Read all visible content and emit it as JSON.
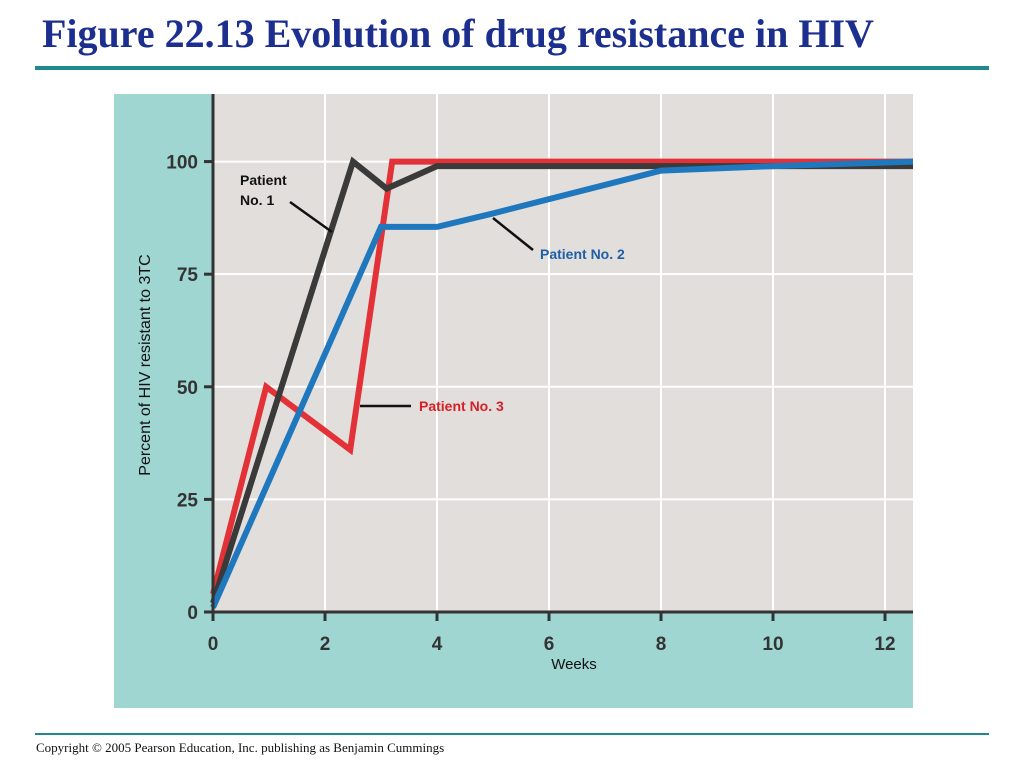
{
  "slide": {
    "title": "Figure 22.13 Evolution of drug resistance in HIV",
    "copyright": "Copyright © 2005 Pearson Education, Inc. publishing as Benjamin Cummings"
  },
  "colors": {
    "title": "#1c2f8f",
    "rule": "#1e8a8e",
    "frame": "#9fd6d2",
    "plot_bg": "#e2dedb",
    "grid": "#ffffff",
    "axis": "#333333"
  },
  "chart_data": {
    "type": "line",
    "title": "",
    "xlabel": "Weeks",
    "ylabel": "Percent of HIV resistant to 3TC",
    "xlim": [
      0,
      12.5
    ],
    "ylim": [
      0,
      115
    ],
    "x_ticks": [
      0,
      2,
      4,
      6,
      8,
      10,
      12
    ],
    "y_ticks": [
      0,
      25,
      50,
      75,
      100
    ],
    "grid": true,
    "series": [
      {
        "name": "Patient No. 1",
        "label_lines": [
          "Patient",
          "No. 1"
        ],
        "color": "#3a3a3a",
        "points": [
          [
            0,
            2
          ],
          [
            2.5,
            100
          ],
          [
            3.1,
            94
          ],
          [
            4,
            99
          ],
          [
            12.5,
            99
          ]
        ]
      },
      {
        "name": "Patient No. 2",
        "label_lines": [
          "Patient No. 2"
        ],
        "color": "#1f78bd",
        "points": [
          [
            0,
            1
          ],
          [
            3,
            85.5
          ],
          [
            4,
            85.5
          ],
          [
            5,
            88.5
          ],
          [
            8,
            98
          ],
          [
            10,
            99
          ],
          [
            12.5,
            100
          ]
        ]
      },
      {
        "name": "Patient No. 3",
        "label_lines": [
          "Patient No. 3"
        ],
        "color": "#e23238",
        "points": [
          [
            0,
            4
          ],
          [
            0.95,
            50
          ],
          [
            2.45,
            36
          ],
          [
            3.2,
            100
          ],
          [
            12.5,
            100
          ]
        ]
      }
    ]
  }
}
